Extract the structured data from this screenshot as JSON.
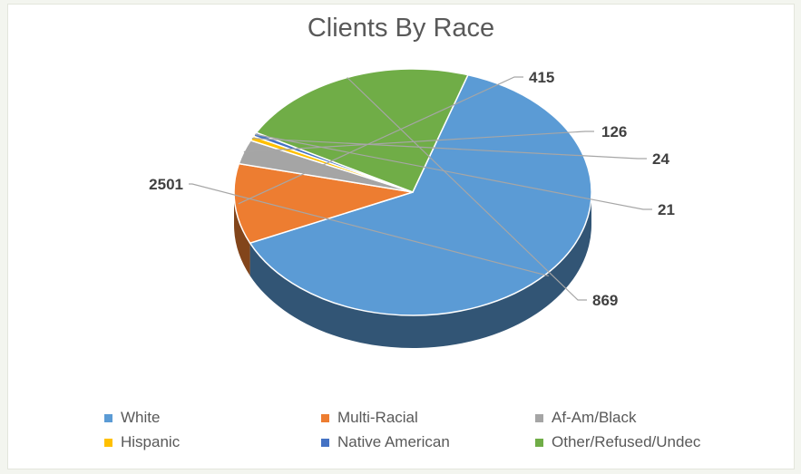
{
  "chart_data": {
    "type": "pie",
    "title": "Clients By Race",
    "categories": [
      "White",
      "Multi-Racial",
      "Af-Am/Black",
      "Hispanic",
      "Native American",
      "Other/Refused/Undec"
    ],
    "values": [
      2501,
      415,
      126,
      24,
      21,
      869
    ],
    "data_labels": [
      "2501",
      "415",
      "126",
      "24",
      "21",
      "869"
    ],
    "colors": [
      "#5b9bd5",
      "#ed7d31",
      "#a5a5a5",
      "#ffc000",
      "#4472c4",
      "#70ad47"
    ],
    "style": "3d",
    "legend_position": "bottom"
  }
}
